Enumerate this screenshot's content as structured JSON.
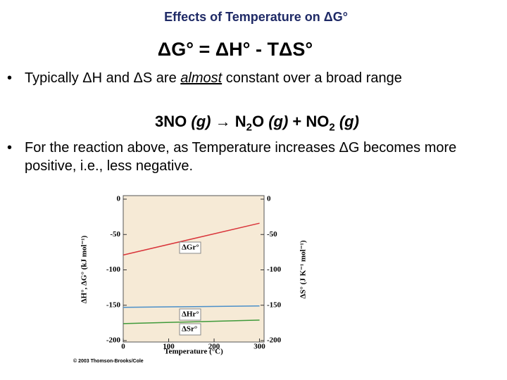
{
  "title": "Effects of Temperature on ΔG°",
  "equation": "ΔG° = ΔH° - TΔS°",
  "bullets": [
    {
      "parts": [
        "Typically ΔH and ΔS are ",
        "almost",
        " constant over a broad range"
      ]
    },
    {
      "parts": [
        "For the reaction above, as Temperature increases ΔG becomes more positive, i.e., less negative."
      ]
    }
  ],
  "reaction": [
    "3NO ",
    "(g)",
    " → N",
    "2",
    "O ",
    "(g)",
    " + NO",
    "2",
    " ",
    "(g)"
  ],
  "chart_data": {
    "type": "line",
    "y_label": "ΔH°, ΔG° (kJ mol⁻¹)",
    "y2_label": "ΔS° (J K⁻¹ mol⁻¹)",
    "x_label": "Temperature (°C)",
    "credit": "© 2003 Thomson-Brooks/Cole",
    "x": [
      0,
      300
    ],
    "xlim": [
      0,
      310
    ],
    "xticks": [
      0,
      100,
      200,
      300
    ],
    "ylim": [
      -200,
      0
    ],
    "yticks": [
      0,
      -50,
      -100,
      -150,
      -200
    ],
    "y2lim": [
      -200,
      0
    ],
    "y2ticks": [
      0,
      -50,
      -100,
      -150,
      -200
    ],
    "series": [
      {
        "name": "ΔGr°",
        "color": "#d9343a",
        "values": [
          -79,
          -34
        ]
      },
      {
        "name": "ΔHr°",
        "color": "#4a8fc9",
        "values": [
          -153,
          -151
        ]
      },
      {
        "name": "ΔSr°",
        "color": "#3f9a3a",
        "values": [
          -176,
          -171
        ],
        "axis": "y2"
      }
    ]
  }
}
